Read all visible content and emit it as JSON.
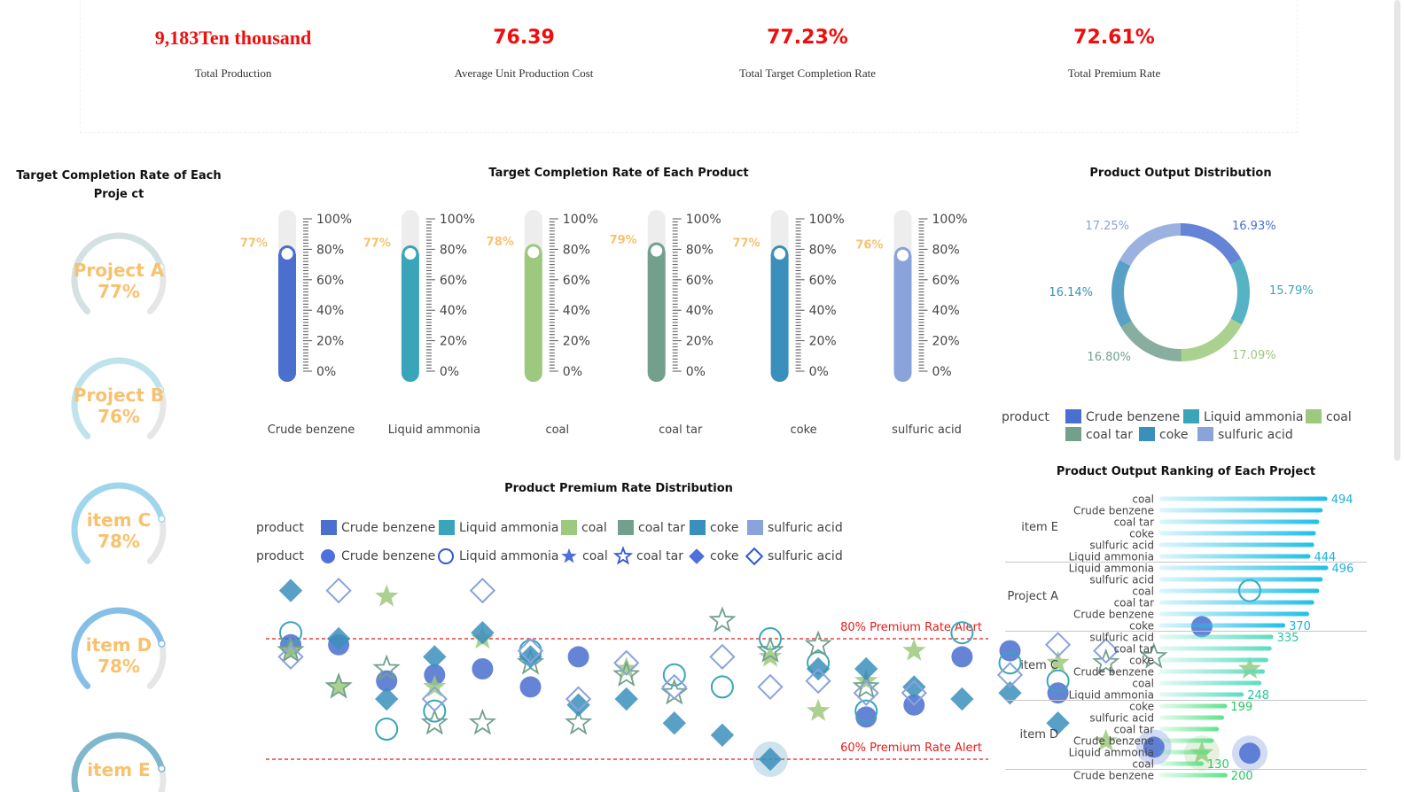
{
  "kpis": [
    {
      "value": "9,183Ten thousand",
      "label": "Total Production"
    },
    {
      "value": "76.39",
      "label": "Average Unit Production Cost"
    },
    {
      "value": "77.23%",
      "label": "Total Target Completion Rate"
    },
    {
      "value": "72.61%",
      "label": "Total Premium Rate"
    }
  ],
  "titles": {
    "project_rates": "Target Completion Rate of Each Proje ct",
    "product_rates": "Target Completion Rate of Each Product",
    "output_dist": "Product Output Distribution",
    "premium_dist": "Product Premium Rate Distribution",
    "ranking": "Product Output Ranking of Each Project"
  },
  "legend_label": "product",
  "product_names": [
    "Crude benzene",
    "Liquid ammonia",
    "coal",
    "coal tar",
    "coke",
    "sulfuric acid"
  ],
  "chart_data": [
    {
      "type": "gauge",
      "title": "Target Completion Rate of Each Proje ct",
      "items": [
        {
          "name": "Project A",
          "value": 77,
          "label": "77%",
          "color": "#d3e1e3"
        },
        {
          "name": "Project B",
          "value": 76,
          "label": "76%",
          "color": "#bfe3ec"
        },
        {
          "name": "item C",
          "value": 78,
          "label": "78%",
          "color": "#9fd6ee"
        },
        {
          "name": "item D",
          "value": 78,
          "label": "78%",
          "color": "#85bfe8"
        },
        {
          "name": "item E",
          "value": null,
          "label": "",
          "color": "#7fb8cc"
        }
      ]
    },
    {
      "type": "bar",
      "subtype": "thermometer",
      "title": "Target Completion Rate of Each Product",
      "categories": [
        "Crude benzene",
        "Liquid ammonia",
        "coal",
        "coal tar",
        "coke",
        "sulfuric acid"
      ],
      "values": [
        77,
        77,
        78,
        79,
        77,
        76
      ],
      "labels": [
        "77%",
        "77%",
        "78%",
        "79%",
        "77%",
        "76%"
      ],
      "colors": [
        "#4a6fcf",
        "#3aa5b8",
        "#9cc97e",
        "#72a08d",
        "#3b8fbc",
        "#8aa3da"
      ],
      "yticks": [
        "100%",
        "80%",
        "60%",
        "40%",
        "20%",
        "0%"
      ],
      "ylim": [
        0,
        100
      ]
    },
    {
      "type": "pie",
      "subtype": "donut",
      "title": "Product Output Distribution",
      "legend_title": "product",
      "categories": [
        "Crude benzene",
        "Liquid ammonia",
        "coal",
        "coal tar",
        "coke",
        "sulfuric acid"
      ],
      "values": [
        16.93,
        15.79,
        17.09,
        16.8,
        16.14,
        17.25
      ],
      "labels": [
        "16.93%",
        "15.79%",
        "17.09%",
        "16.80%",
        "16.14%",
        "17.25%"
      ],
      "colors": [
        "#4a6fcf",
        "#3aa5b8",
        "#9cc97e",
        "#72a08d",
        "#3b8fbc",
        "#8aa3da"
      ]
    },
    {
      "type": "scatter",
      "title": "Product Premium Rate Distribution",
      "legend_bar_title": "product",
      "legend_symbol_title": "product",
      "categories": [
        "Crude benzene",
        "Liquid ammonia",
        "coal",
        "coal tar",
        "coke",
        "sulfuric acid"
      ],
      "colors": [
        "#4a6fcf",
        "#3aa5b8",
        "#9cc97e",
        "#72a08d",
        "#3b8fbc",
        "#8aa3da"
      ],
      "symbols": [
        "circle",
        "empty-circle",
        "star",
        "empty-star",
        "diamond",
        "empty-diamond"
      ],
      "ylim": [
        40,
        100
      ],
      "marklines": [
        {
          "value": 80,
          "label": "80% Premium Rate Alert"
        },
        {
          "value": 60,
          "label": "60% Premium Rate Alert"
        }
      ],
      "series": [
        {
          "name": "Crude benzene",
          "points": [
            [
              0,
              79
            ],
            [
              1,
              79
            ],
            [
              2,
              73
            ],
            [
              3,
              74
            ],
            [
              4,
              75
            ],
            [
              5,
              72
            ],
            [
              6,
              77
            ],
            [
              12,
              67
            ],
            [
              13,
              69
            ],
            [
              14,
              77
            ],
            [
              15,
              78
            ],
            [
              16,
              71
            ],
            [
              18,
              62
            ],
            [
              19,
              82
            ],
            [
              20,
              61
            ]
          ]
        },
        {
          "name": "Liquid ammonia",
          "points": [
            [
              0,
              81
            ],
            [
              2,
              65
            ],
            [
              3,
              68
            ],
            [
              5,
              78
            ],
            [
              8,
              74
            ],
            [
              9,
              72
            ],
            [
              10,
              80
            ],
            [
              11,
              76
            ],
            [
              12,
              68
            ],
            [
              14,
              81
            ],
            [
              15,
              76
            ],
            [
              16,
              73
            ],
            [
              20,
              88
            ]
          ]
        },
        {
          "name": "coal",
          "points": [
            [
              0,
              78
            ],
            [
              1,
              72
            ],
            [
              2,
              87
            ],
            [
              3,
              72
            ],
            [
              4,
              80
            ],
            [
              7,
              75
            ],
            [
              10,
              77
            ],
            [
              11,
              68
            ],
            [
              12,
              73
            ],
            [
              13,
              78
            ],
            [
              16,
              76
            ],
            [
              17,
              63
            ],
            [
              19,
              61
            ],
            [
              20,
              75
            ]
          ]
        },
        {
          "name": "coal tar",
          "points": [
            [
              0,
              78
            ],
            [
              1,
              72
            ],
            [
              2,
              75
            ],
            [
              3,
              66
            ],
            [
              4,
              66
            ],
            [
              5,
              76
            ],
            [
              6,
              66
            ],
            [
              7,
              74
            ],
            [
              8,
              71
            ],
            [
              9,
              83
            ],
            [
              10,
              78
            ],
            [
              11,
              79
            ],
            [
              12,
              72
            ],
            [
              17,
              76
            ],
            [
              18,
              77
            ]
          ]
        },
        {
          "name": "coke",
          "points": [
            [
              0,
              88
            ],
            [
              1,
              80
            ],
            [
              2,
              70
            ],
            [
              3,
              77
            ],
            [
              4,
              81
            ],
            [
              5,
              77
            ],
            [
              6,
              69
            ],
            [
              7,
              70
            ],
            [
              8,
              66
            ],
            [
              9,
              64
            ],
            [
              10,
              60
            ],
            [
              11,
              75
            ],
            [
              12,
              75
            ],
            [
              13,
              72
            ],
            [
              14,
              70
            ],
            [
              15,
              71
            ],
            [
              16,
              66
            ]
          ]
        },
        {
          "name": "sulfuric acid",
          "points": [
            [
              0,
              77
            ],
            [
              1,
              88
            ],
            [
              3,
              70
            ],
            [
              4,
              88
            ],
            [
              5,
              78
            ],
            [
              6,
              70
            ],
            [
              7,
              76
            ],
            [
              8,
              72
            ],
            [
              9,
              77
            ],
            [
              10,
              72
            ],
            [
              11,
              73
            ],
            [
              12,
              71
            ],
            [
              13,
              71
            ],
            [
              15,
              74
            ],
            [
              16,
              79
            ],
            [
              17,
              78
            ]
          ]
        }
      ]
    },
    {
      "type": "bar",
      "subtype": "horizontal-grouped",
      "title": "Product Output Ranking of Each Project",
      "groups": [
        {
          "name": "item E",
          "rows": [
            {
              "label": "coal",
              "value": 494,
              "shown": "494"
            },
            {
              "label": "Crude benzene",
              "value": 480
            },
            {
              "label": "coal tar",
              "value": 470
            },
            {
              "label": "coke",
              "value": 460
            },
            {
              "label": "sulfuric acid",
              "value": 455
            },
            {
              "label": "Liquid ammonia",
              "value": 444,
              "shown": "444"
            }
          ]
        },
        {
          "name": "Project A",
          "rows": [
            {
              "label": "Liquid ammonia",
              "value": 496,
              "shown": "496"
            },
            {
              "label": "sulfuric acid",
              "value": 480
            },
            {
              "label": "coal",
              "value": 470
            },
            {
              "label": "coal tar",
              "value": 455
            },
            {
              "label": "Crude benzene",
              "value": 440
            },
            {
              "label": "coke",
              "value": 370,
              "shown": "370"
            }
          ]
        },
        {
          "name": "item C",
          "rows": [
            {
              "label": "sulfuric acid",
              "value": 335,
              "shown": "335"
            },
            {
              "label": "coal tar",
              "value": 330
            },
            {
              "label": "coke",
              "value": 320
            },
            {
              "label": "Crude benzene",
              "value": 310
            },
            {
              "label": "coal",
              "value": 300
            },
            {
              "label": "Liquid ammonia",
              "value": 248,
              "shown": "248"
            }
          ]
        },
        {
          "name": "item D",
          "rows": [
            {
              "label": "coke",
              "value": 199,
              "shown": "199"
            },
            {
              "label": "sulfuric acid",
              "value": 190
            },
            {
              "label": "coal tar",
              "value": 175
            },
            {
              "label": "Crude benzene",
              "value": 160
            },
            {
              "label": "Liquid ammonia",
              "value": 145
            },
            {
              "label": "coal",
              "value": 130,
              "shown": "130"
            }
          ]
        },
        {
          "name": "",
          "rows": [
            {
              "label": "Crude benzene",
              "value": 200,
              "shown": "200"
            }
          ]
        }
      ],
      "xlim": [
        0,
        500
      ]
    }
  ]
}
